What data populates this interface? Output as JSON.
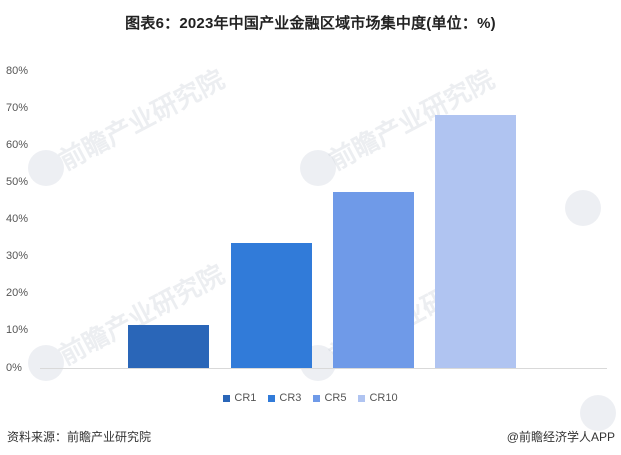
{
  "title": "图表6：2023年中国产业金融区域市场集中度(单位：%)",
  "y_axis": {
    "ticks": [
      "80%",
      "70%",
      "60%",
      "50%",
      "40%",
      "30%",
      "20%",
      "10%",
      "0%"
    ]
  },
  "legend": [
    {
      "label": "CR1",
      "color": "#2a66b8"
    },
    {
      "label": "CR3",
      "color": "#317bd9"
    },
    {
      "label": "CR5",
      "color": "#6f9ae8"
    },
    {
      "label": "CR10",
      "color": "#b0c4f1"
    }
  ],
  "footer": {
    "source": "资料来源：前瞻产业研究院",
    "credit": "@前瞻经济学人APP"
  },
  "watermark": "前瞻产业研究院",
  "chart_data": {
    "type": "bar",
    "title": "图表6：2023年中国产业金融区域市场集中度(单位：%)",
    "categories": [
      "CR1",
      "CR3",
      "CR5",
      "CR10"
    ],
    "values": [
      11.6,
      33.7,
      47.4,
      68.2
    ],
    "colors": [
      "#2a66b8",
      "#317bd9",
      "#6f9ae8",
      "#b0c4f1"
    ],
    "xlabel": "",
    "ylabel": "",
    "ylim": [
      0,
      80
    ],
    "y_tick_labels": [
      "0%",
      "10%",
      "20%",
      "30%",
      "40%",
      "50%",
      "60%",
      "70%",
      "80%"
    ],
    "grid": false,
    "legend_position": "bottom"
  }
}
